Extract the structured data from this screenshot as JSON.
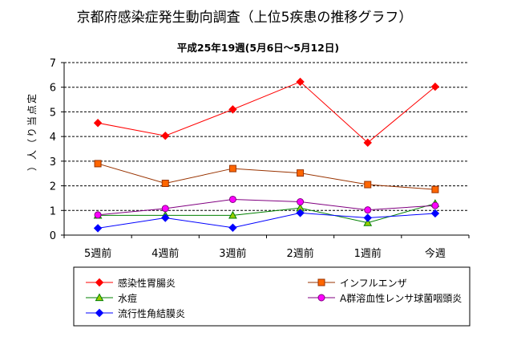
{
  "chart_data": {
    "type": "line",
    "title": "京都府感染症発生動向調査（上位5疾患の推移グラフ）",
    "subtitle": "平成25年19週(5月6日～5月12日)",
    "ylabel_chars": [
      "定",
      "点",
      "当",
      "り",
      "（",
      "人",
      "）"
    ],
    "categories": [
      "5週前",
      "4週前",
      "3週前",
      "2週前",
      "1週前",
      "今週"
    ],
    "ylim": [
      0,
      7
    ],
    "yticks": [
      0,
      1,
      2,
      3,
      4,
      5,
      6,
      7
    ],
    "ytick_labels": [
      "0",
      "1",
      "2",
      "3",
      "4",
      "5",
      "6",
      "7"
    ],
    "grid": "horizontal-dashed",
    "legend_position": "bottom",
    "series": [
      {
        "name": "感染性胃腸炎",
        "color": "#ff0000",
        "marker": "diamond",
        "fill": "#ff0000",
        "values": [
          4.55,
          4.03,
          5.1,
          6.22,
          3.75,
          6.02
        ]
      },
      {
        "name": "インフルエンザ",
        "color": "#993300",
        "marker": "square",
        "fill": "#ff6600",
        "values": [
          2.9,
          2.1,
          2.7,
          2.52,
          2.05,
          1.85
        ]
      },
      {
        "name": "水痘",
        "color": "#008000",
        "marker": "triangle",
        "fill": "#99cc00",
        "values": [
          0.8,
          0.8,
          0.8,
          1.1,
          0.5,
          1.28
        ]
      },
      {
        "name": "A群溶血性レンサ球菌咽頭炎",
        "color": "#800080",
        "marker": "circle",
        "fill": "#ff00ff",
        "values": [
          0.82,
          1.08,
          1.45,
          1.35,
          1.02,
          1.2
        ]
      },
      {
        "name": "流行性角結膜炎",
        "color": "#0000ff",
        "marker": "diamond",
        "fill": "#0000ff",
        "values": [
          0.28,
          0.7,
          0.3,
          0.9,
          0.7,
          0.88
        ]
      }
    ]
  }
}
